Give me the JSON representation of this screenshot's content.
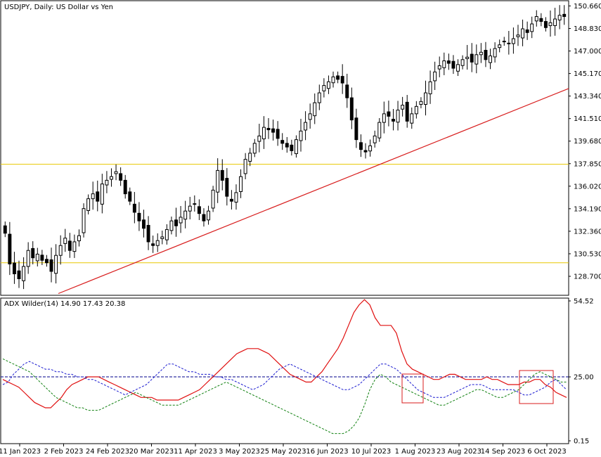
{
  "header": {
    "symbol_title": "USDJPY, Daily:  US Dollar vs Yen"
  },
  "colors": {
    "candle": "#000000",
    "background": "#ffffff",
    "support_line": "#e8c800",
    "trend_line": "#d81e1e",
    "adx_line": "#e01010",
    "plus_di": "#1a1ad0",
    "minus_di": "#108010",
    "reference_level": "#00008b",
    "highlight_box": "#d81e1e"
  },
  "chart_data": [
    {
      "type": "candlestick",
      "title": "USDJPY, Daily:  US Dollar vs Yen",
      "ylim": [
        127.5,
        150.8
      ],
      "price_ticks": [
        "150.660",
        "148.830",
        "147.000",
        "145.170",
        "143.340",
        "141.510",
        "139.680",
        "137.850",
        "136.020",
        "134.190",
        "132.360",
        "130.530",
        "128.700"
      ],
      "x_ticks": [
        "11 Jan 2023",
        "2 Feb 2023",
        "24 Feb 2023",
        "20 Mar 2023",
        "11 Apr 2023",
        "3 May 2023",
        "25 May 2023",
        "16 Jun 2023",
        "10 Jul 2023",
        "1 Aug 2023",
        "23 Aug 2023",
        "14 Sep 2023",
        "6 Oct 2023"
      ],
      "horizontal_lines": [
        137.8,
        129.8
      ],
      "trend_line": {
        "from": [
          "11 Jan 2023",
          127.3
        ],
        "to": [
          "6 Oct 2023",
          143.7
        ]
      },
      "closes": [
        132.2,
        129.7,
        128.9,
        128.5,
        129.5,
        130.8,
        130.2,
        130.5,
        130.0,
        129.8,
        129.1,
        130.4,
        131.2,
        131.8,
        130.8,
        131.5,
        132.0,
        134.2,
        135.0,
        135.4,
        134.8,
        136.2,
        136.5,
        136.8,
        137.2,
        136.5,
        135.4,
        134.8,
        133.9,
        133.2,
        132.6,
        131.5,
        131.2,
        131.6,
        131.9,
        132.5,
        133.2,
        132.8,
        133.5,
        134.0,
        134.4,
        134.6,
        133.8,
        133.2,
        134.0,
        135.7,
        137.3,
        136.5,
        135.2,
        134.8,
        135.5,
        136.8,
        138.2,
        138.7,
        139.5,
        140.1,
        140.8,
        140.6,
        140.4,
        139.9,
        139.5,
        139.2,
        138.9,
        139.8,
        140.5,
        141.2,
        141.9,
        142.8,
        143.6,
        144.2,
        144.5,
        144.9,
        144.7,
        144.4,
        143.2,
        141.4,
        139.8,
        139.0,
        138.8,
        139.3,
        140.1,
        141.2,
        141.9,
        141.7,
        141.3,
        142.2,
        142.6,
        141.3,
        141.9,
        142.5,
        142.9,
        143.6,
        144.5,
        145.3,
        145.8,
        146.2,
        146.0,
        145.6,
        145.9,
        146.3,
        146.5,
        146.1,
        146.7,
        146.9,
        146.3,
        146.6,
        147.2,
        147.5,
        147.8,
        147.6,
        148.0,
        148.3,
        148.8,
        148.5,
        149.2,
        149.8,
        149.4,
        148.9,
        149.3,
        149.6,
        149.9,
        149.8
      ]
    },
    {
      "type": "line",
      "title": "ADX Wilder(14) 14.90 17.43 20.38",
      "ylim": [
        0.15,
        54.52
      ],
      "level_ticks": [
        "54.52",
        "25.00",
        "0.15"
      ],
      "reference_line": 25.0,
      "series": [
        {
          "name": "ADX",
          "values": [
            24,
            23,
            22,
            21,
            19,
            17,
            15,
            14,
            13,
            13,
            15,
            17,
            20,
            22,
            23,
            24,
            25,
            25,
            25,
            24,
            23,
            22,
            21,
            20,
            19,
            18,
            17,
            17,
            17,
            16,
            16,
            16,
            16,
            16,
            17,
            18,
            19,
            20,
            22,
            24,
            26,
            28,
            30,
            32,
            34,
            35,
            36,
            36,
            36,
            35,
            34,
            32,
            30,
            28,
            26,
            25,
            24,
            23,
            23,
            25,
            27,
            30,
            33,
            36,
            40,
            45,
            50,
            53,
            55,
            53,
            48,
            45,
            45,
            45,
            42,
            35,
            30,
            28,
            27,
            26,
            25,
            24,
            24,
            25,
            26,
            26,
            25,
            24,
            24,
            24,
            24,
            25,
            24,
            24,
            23,
            22,
            22,
            22,
            23,
            23,
            24,
            24,
            22,
            21,
            19,
            18,
            17
          ]
        },
        {
          "name": "+DI",
          "values": [
            22,
            23,
            26,
            28,
            30,
            31,
            30,
            29,
            28,
            28,
            27,
            27,
            26,
            26,
            25,
            25,
            24,
            24,
            23,
            22,
            21,
            20,
            19,
            18,
            19,
            20,
            21,
            22,
            24,
            26,
            28,
            30,
            30,
            29,
            28,
            27,
            27,
            26,
            26,
            26,
            25,
            25,
            24,
            24,
            23,
            22,
            21,
            20,
            21,
            22,
            24,
            26,
            28,
            29,
            30,
            29,
            28,
            27,
            26,
            25,
            24,
            23,
            22,
            21,
            20,
            20,
            21,
            22,
            24,
            26,
            28,
            30,
            30,
            29,
            28,
            26,
            24,
            22,
            20,
            19,
            18,
            17,
            17,
            17,
            18,
            19,
            20,
            21,
            22,
            22,
            22,
            21,
            20,
            20,
            20,
            20,
            20,
            19,
            18,
            18,
            19,
            20,
            21,
            23,
            24,
            22,
            20
          ]
        },
        {
          "name": "-DI",
          "values": [
            32,
            31,
            30,
            29,
            28,
            27,
            25,
            23,
            21,
            19,
            17,
            16,
            15,
            14,
            13,
            13,
            12,
            12,
            12,
            13,
            14,
            15,
            16,
            17,
            18,
            19,
            18,
            17,
            16,
            15,
            14,
            14,
            14,
            14,
            15,
            16,
            17,
            18,
            19,
            20,
            21,
            22,
            23,
            22,
            21,
            20,
            19,
            18,
            17,
            16,
            15,
            14,
            13,
            12,
            11,
            10,
            9,
            8,
            7,
            6,
            5,
            4,
            3,
            3,
            3,
            4,
            6,
            9,
            14,
            20,
            24,
            26,
            25,
            23,
            22,
            21,
            20,
            19,
            18,
            17,
            16,
            15,
            14,
            14,
            15,
            16,
            17,
            18,
            19,
            20,
            20,
            19,
            18,
            17,
            17,
            18,
            19,
            20,
            22,
            24,
            26,
            27,
            26,
            25,
            24,
            23,
            23
          ]
        }
      ],
      "highlight_boxes": [
        [
          "1 Aug 2023",
          "1 Aug 2023"
        ],
        [
          "14 Sep 2023",
          "6 Oct 2023"
        ]
      ]
    }
  ]
}
